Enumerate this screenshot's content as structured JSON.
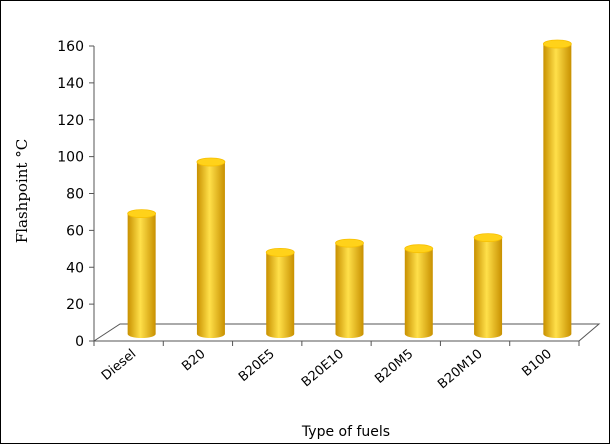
{
  "chart_data": {
    "type": "bar",
    "title": "",
    "xlabel": "Type of fuels",
    "ylabel": "Flashpoint °C",
    "categories": [
      "Diesel",
      "B20",
      "B20E5",
      "B20E10",
      "B20M5",
      "B20M10",
      "B100"
    ],
    "series": [
      {
        "values": [
          64,
          92,
          43,
          48,
          45,
          51,
          156
        ]
      }
    ],
    "ylim": [
      0,
      160
    ],
    "yticks": [
      0,
      20,
      40,
      60,
      80,
      100,
      120,
      140,
      160
    ],
    "grid": false,
    "legend": "none",
    "style": "3d-cylinder"
  },
  "colors": {
    "bar_light": "#ffe04a",
    "bar_mid": "#f7bf00",
    "bar_dark": "#c89000",
    "bar_top": "#ffd21a",
    "floor_line": "#555555"
  }
}
